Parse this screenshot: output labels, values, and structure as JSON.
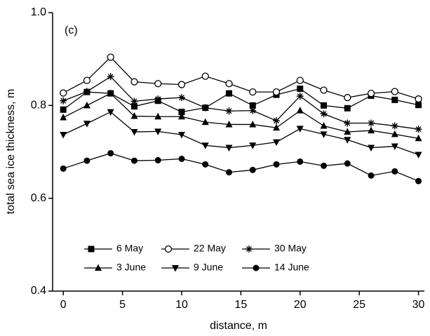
{
  "chart_data": {
    "type": "line",
    "annotation": "(c)",
    "x_label": "distance, m",
    "y_label": "total sea ice thickness, m",
    "x": [
      0,
      2,
      4,
      6,
      8,
      10,
      12,
      14,
      16,
      18,
      20,
      22,
      24,
      26,
      28,
      30
    ],
    "series": [
      {
        "name": "6 May",
        "color": "#000000",
        "marker": "square",
        "values": [
          0.791,
          0.829,
          0.826,
          0.798,
          0.81,
          0.786,
          0.795,
          0.826,
          0.8,
          0.823,
          0.836,
          0.8,
          0.794,
          0.821,
          0.812,
          0.801
        ]
      },
      {
        "name": "22 May",
        "color": "#000000",
        "marker": "open-circle",
        "values": [
          0.827,
          0.854,
          0.904,
          0.851,
          0.847,
          0.845,
          0.863,
          0.847,
          0.829,
          0.829,
          0.854,
          0.833,
          0.817,
          0.826,
          0.83,
          0.814
        ]
      },
      {
        "name": "30 May",
        "color": "#000000",
        "marker": "asterisk",
        "values": [
          0.81,
          0.83,
          0.862,
          0.809,
          0.814,
          0.817,
          0.795,
          0.788,
          0.789,
          0.767,
          0.82,
          0.782,
          0.762,
          0.762,
          0.756,
          0.749
        ]
      },
      {
        "name": "3 June",
        "color": "#000000",
        "marker": "triangle-up",
        "values": [
          0.774,
          0.8,
          0.826,
          0.777,
          0.776,
          0.776,
          0.764,
          0.759,
          0.759,
          0.752,
          0.789,
          0.756,
          0.743,
          0.746,
          0.738,
          0.729
        ]
      },
      {
        "name": "9 June",
        "color": "#000000",
        "marker": "triangle-down",
        "values": [
          0.737,
          0.761,
          0.786,
          0.743,
          0.744,
          0.737,
          0.714,
          0.709,
          0.714,
          0.721,
          0.75,
          0.738,
          0.726,
          0.709,
          0.712,
          0.694
        ]
      },
      {
        "name": "14 June",
        "color": "#000000",
        "marker": "circle",
        "values": [
          0.664,
          0.681,
          0.697,
          0.681,
          0.682,
          0.685,
          0.673,
          0.656,
          0.661,
          0.673,
          0.679,
          0.67,
          0.675,
          0.649,
          0.658,
          0.637
        ]
      }
    ],
    "xlim": [
      -0.9,
      30.5
    ],
    "ylim": [
      0.4,
      1.0
    ],
    "xticks": [
      0,
      5,
      10,
      15,
      20,
      25,
      30
    ],
    "yticks": [
      0.4,
      0.6,
      0.8,
      {
        "value": 1.0,
        "label": "1.0"
      }
    ],
    "grid": false
  }
}
